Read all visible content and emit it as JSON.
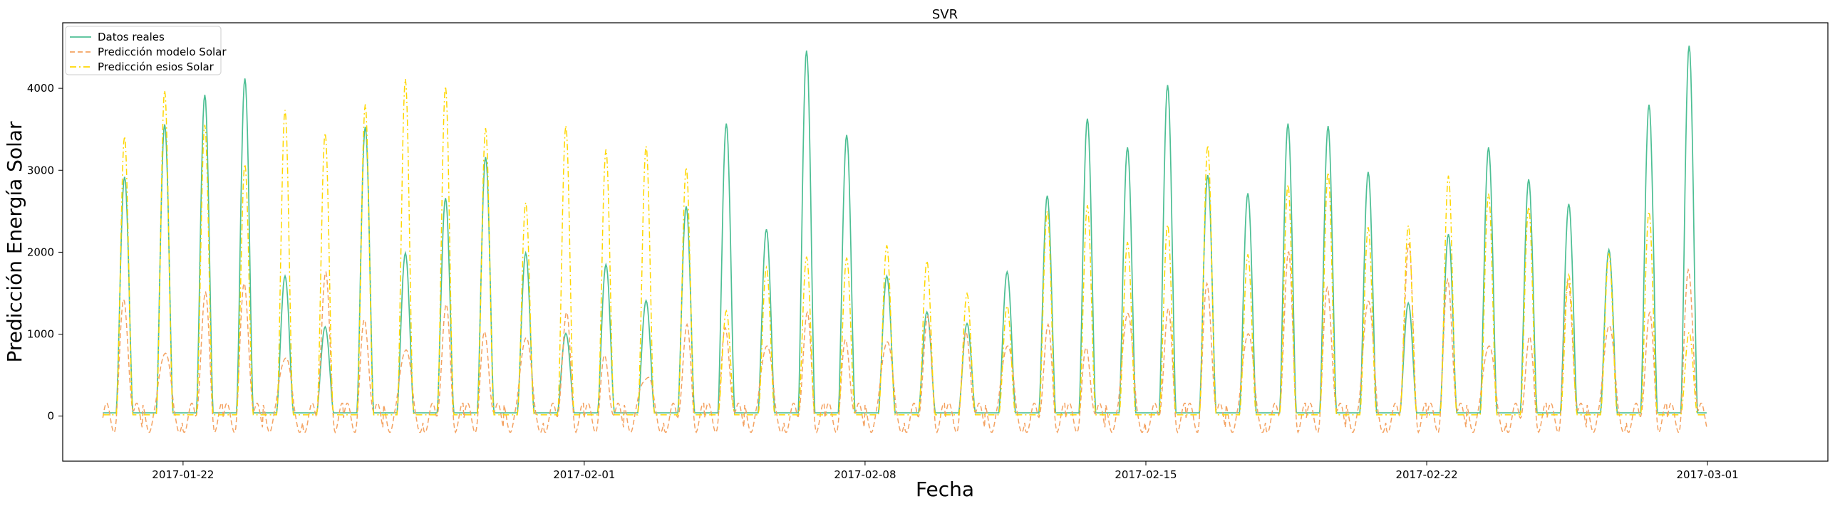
{
  "chart_data": {
    "type": "line",
    "title": "SVR",
    "xlabel": "Fecha",
    "ylabel": "Predicción Energía Solar",
    "xlim": [
      "2017-01-19",
      "2017-03-04"
    ],
    "ylim": [
      -550,
      4800
    ],
    "x_ticks": [
      "2017-01-22",
      "2017-02-01",
      "2017-02-08",
      "2017-02-15",
      "2017-02-22",
      "2017-03-01"
    ],
    "y_ticks": [
      0,
      1000,
      2000,
      3000,
      4000
    ],
    "grid": false,
    "legend_position": "top-left",
    "x_start": "2017-01-20",
    "x_step_days": 1,
    "series": [
      {
        "name": "Datos reales",
        "color": "#4dbf94",
        "style": "solid",
        "daily_peaks": [
          2880,
          3520,
          3880,
          4080,
          1670,
          1050,
          3490,
          1950,
          2620,
          3120,
          1950,
          970,
          1810,
          1370,
          2520,
          3530,
          2240,
          4420,
          3390,
          1670,
          1230,
          1090,
          1720,
          2650,
          3590,
          3240,
          4000,
          2900,
          2680,
          3530,
          3500,
          2940,
          1340,
          2180,
          3240,
          2850,
          2550,
          1990,
          3760,
          4480
        ]
      },
      {
        "name": "Predicción modelo Solar",
        "color": "#f4a261",
        "style": "dashed",
        "daily_peaks": [
          1350,
          960,
          1400,
          1550,
          900,
          1650,
          1100,
          1000,
          1250,
          950,
          1150,
          1150,
          650,
          650,
          1000,
          1000,
          1050,
          1150,
          850,
          1100,
          1100,
          950,
          1050,
          1000,
          750,
          1450,
          1200,
          1550,
          1200,
          1900,
          1500,
          1600,
          2000,
          1600,
          1050,
          850,
          1600,
          1300,
          1150,
          1720
        ]
      },
      {
        "name": "Predicción esios Solar",
        "color": "#ffd700",
        "style": "dashdot",
        "daily_peaks": [
          3400,
          3960,
          3540,
          3060,
          3720,
          3440,
          3790,
          4100,
          4010,
          3500,
          2590,
          3530,
          3240,
          3280,
          3020,
          1270,
          1800,
          1930,
          1920,
          2070,
          1880,
          1480,
          1330,
          2490,
          2560,
          2110,
          2320,
          3290,
          1960,
          2810,
          2960,
          2290,
          2310,
          2920,
          2700,
          2540,
          1710,
          1970,
          2480,
          1010
        ]
      }
    ]
  }
}
